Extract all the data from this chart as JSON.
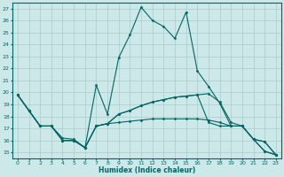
{
  "xlabel": "Humidex (Indice chaleur)",
  "bg_color": "#cce8e8",
  "grid_color": "#aacccc",
  "line_color": "#006666",
  "xlim": [
    -0.5,
    23.5
  ],
  "ylim": [
    14.5,
    27.5
  ],
  "xticks": [
    0,
    1,
    2,
    3,
    4,
    5,
    6,
    7,
    8,
    9,
    10,
    11,
    12,
    13,
    14,
    15,
    16,
    17,
    18,
    19,
    20,
    21,
    22,
    23
  ],
  "yticks": [
    15,
    16,
    17,
    18,
    19,
    20,
    21,
    22,
    23,
    24,
    25,
    26,
    27
  ],
  "series": [
    [
      19.8,
      18.5,
      17.2,
      17.2,
      16.2,
      16.1,
      15.4,
      20.6,
      18.2,
      22.9,
      24.8,
      27.1,
      26.0,
      25.5,
      24.5,
      26.7,
      21.8,
      20.5,
      19.1,
      17.2,
      17.2,
      16.1,
      15.1,
      14.8
    ],
    [
      19.8,
      18.5,
      17.2,
      17.2,
      16.0,
      16.0,
      15.4,
      17.2,
      17.4,
      18.2,
      18.5,
      18.9,
      19.2,
      19.4,
      19.6,
      19.7,
      19.8,
      17.5,
      17.2,
      17.2,
      17.2,
      16.1,
      15.9,
      14.8
    ],
    [
      19.8,
      18.5,
      17.2,
      17.2,
      16.0,
      16.0,
      15.4,
      17.2,
      17.4,
      18.2,
      18.5,
      18.9,
      19.2,
      19.4,
      19.6,
      19.7,
      19.8,
      19.9,
      19.2,
      17.5,
      17.2,
      16.1,
      15.9,
      14.8
    ],
    [
      19.8,
      18.5,
      17.2,
      17.2,
      16.0,
      16.0,
      15.4,
      17.2,
      17.4,
      17.5,
      17.6,
      17.7,
      17.8,
      17.8,
      17.8,
      17.8,
      17.8,
      17.7,
      17.5,
      17.2,
      17.2,
      16.1,
      15.1,
      14.8
    ]
  ]
}
